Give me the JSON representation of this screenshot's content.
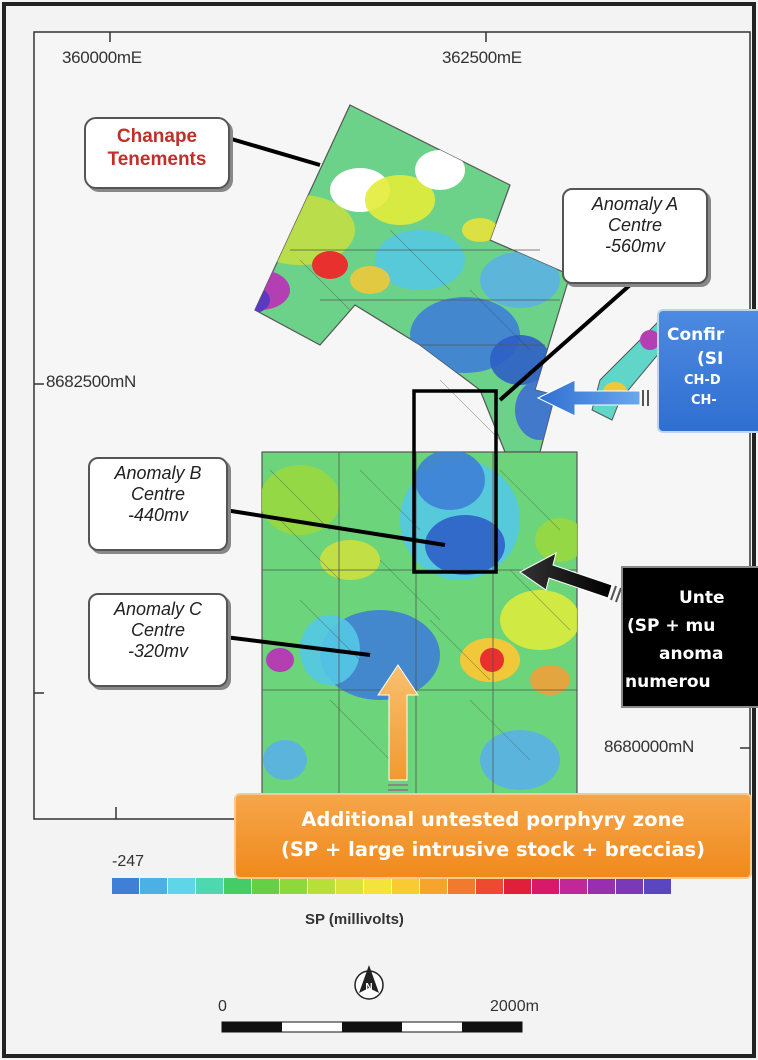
{
  "grid": {
    "easting_1": "360000mE",
    "easting_2": "362500mE",
    "northing_1": "8682500mN",
    "northing_2": "8680000mN"
  },
  "tenement_label": {
    "line1": "Chanape",
    "line2": "Tenements"
  },
  "anomalies": [
    {
      "line1": "Anomaly A",
      "line2": "Centre",
      "line3": "-560mv"
    },
    {
      "line1": "Anomaly B",
      "line2": "Centre",
      "line3": "-440mv"
    },
    {
      "line1": "Anomaly C",
      "line2": "Centre",
      "line3": "-320mv"
    }
  ],
  "confirmed_box": {
    "line1": "Confir",
    "line2": "(SI",
    "line3": "CH-D",
    "line4": "CH-",
    "color": "#2f6fd1"
  },
  "untested_box": {
    "line1": "Unte",
    "line2": "(SP + mu",
    "line3": "anoma",
    "line4": "numerou",
    "color": "#000000"
  },
  "additional_box": {
    "line1": "Additional untested porphyry zone",
    "line2": "(SP + large intrusive stock + breccias)",
    "color": "#f08a1c"
  },
  "legend": {
    "min_value": "-247",
    "label": "SP (millivolts)",
    "colors": [
      "#3f7fd6",
      "#4ab0e6",
      "#5fd6e8",
      "#4fd8b0",
      "#44cc66",
      "#66d044",
      "#8ed83c",
      "#b8de3a",
      "#d8e23a",
      "#f2e43a",
      "#f8cc30",
      "#f6a42e",
      "#f27a2e",
      "#ee4a30",
      "#e0203a",
      "#d81868",
      "#c02898",
      "#9a2eb0",
      "#7a3ab8",
      "#5a46c0"
    ]
  },
  "north_arrow": {
    "letter": "N"
  },
  "scale_bar": {
    "start": "0",
    "end": "2000m"
  }
}
